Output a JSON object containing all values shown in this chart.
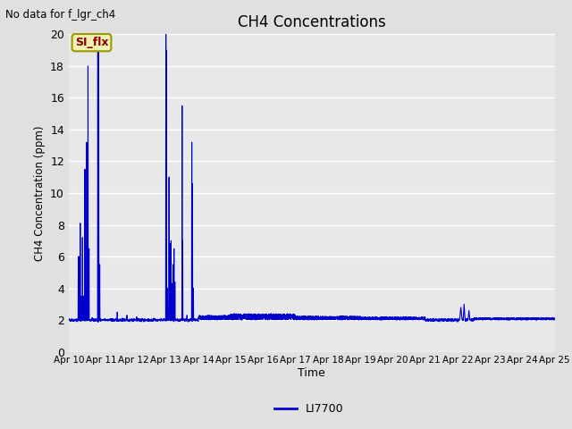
{
  "title": "CH4 Concentrations",
  "xlabel": "Time",
  "ylabel": "CH4 Concentration (ppm)",
  "top_left_text": "No data for f_lgr_ch4",
  "legend_label": "LI7700",
  "legend_line_color": "#0000cd",
  "annotation_box_text": "SI_flx",
  "annotation_box_facecolor": "#f0f0b0",
  "annotation_box_edgecolor": "#999900",
  "annotation_text_color": "#8b0000",
  "ylim": [
    0,
    20
  ],
  "yticks": [
    0,
    2,
    4,
    6,
    8,
    10,
    12,
    14,
    16,
    18,
    20
  ],
  "background_color": "#e0e0e0",
  "plot_bg_color": "#e8e8e8",
  "line_color": "#0000cc",
  "line_width": 0.8,
  "grid_color": "#ffffff",
  "xtick_labels": [
    "Apr 10",
    "Apr 11",
    "Apr 12",
    "Apr 13",
    "Apr 14",
    "Apr 15",
    "Apr 16",
    "Apr 17",
    "Apr 18",
    "Apr 19",
    "Apr 20",
    "Apr 21",
    "Apr 22",
    "Apr 23",
    "Apr 24",
    "Apr 25"
  ]
}
